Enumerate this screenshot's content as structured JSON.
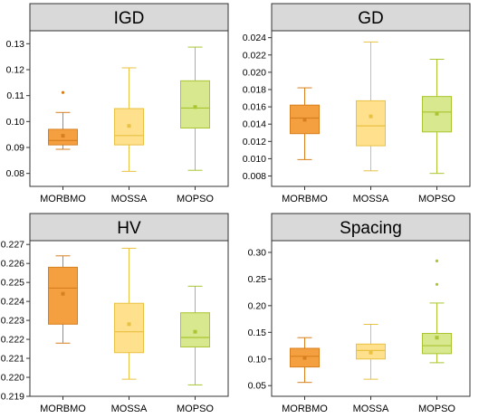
{
  "chart_data": [
    {
      "type": "box",
      "title": "IGD",
      "categories": [
        "MORBMO",
        "MOSSA",
        "MOPSO"
      ],
      "ylim": [
        0.075,
        0.135
      ],
      "ticks": [
        0.08,
        0.09,
        0.1,
        0.11,
        0.12,
        0.13
      ],
      "tick_decimals": 2,
      "series": [
        {
          "category": "MORBMO",
          "whisker_low": 0.0893,
          "q1": 0.091,
          "median": 0.0927,
          "q3": 0.097,
          "whisker_high": 0.1035,
          "mean": 0.0945,
          "outliers": [
            0.1112
          ],
          "color": "#f5a040",
          "border": "#d77f1e"
        },
        {
          "category": "MOSSA",
          "whisker_low": 0.0808,
          "q1": 0.091,
          "median": 0.0946,
          "q3": 0.105,
          "whisker_high": 0.1207,
          "mean": 0.0983,
          "outliers": [],
          "color": "#ffe08c",
          "border": "#e9c143"
        },
        {
          "category": "MOPSO",
          "whisker_low": 0.0812,
          "q1": 0.0975,
          "median": 0.1052,
          "q3": 0.1157,
          "whisker_high": 0.1287,
          "mean": 0.1056,
          "outliers": [],
          "color": "#d7e88e",
          "border": "#a9c531"
        }
      ]
    },
    {
      "type": "box",
      "title": "GD",
      "categories": [
        "MORBMO",
        "MOSSA",
        "MOPSO"
      ],
      "ylim": [
        0.0068,
        0.0248
      ],
      "ticks": [
        0.008,
        0.01,
        0.012,
        0.014,
        0.016,
        0.018,
        0.02,
        0.022,
        0.024
      ],
      "tick_decimals": 3,
      "series": [
        {
          "category": "MORBMO",
          "whisker_low": 0.0099,
          "q1": 0.0129,
          "median": 0.0147,
          "q3": 0.0162,
          "whisker_high": 0.0182,
          "mean": 0.0145,
          "outliers": [],
          "color": "#f5a040",
          "border": "#d77f1e"
        },
        {
          "category": "MOSSA",
          "whisker_low": 0.0086,
          "q1": 0.0115,
          "median": 0.0138,
          "q3": 0.0167,
          "whisker_high": 0.0235,
          "mean": 0.0149,
          "outliers": [],
          "color": "#ffe08c",
          "border": "#e9c143"
        },
        {
          "category": "MOPSO",
          "whisker_low": 0.0083,
          "q1": 0.0131,
          "median": 0.0154,
          "q3": 0.0172,
          "whisker_high": 0.0215,
          "mean": 0.0152,
          "outliers": [],
          "color": "#d7e88e",
          "border": "#a9c531"
        }
      ]
    },
    {
      "type": "box",
      "title": "HV",
      "categories": [
        "MORBMO",
        "MOSSA",
        "MOPSO"
      ],
      "ylim": [
        0.219,
        0.2272
      ],
      "ticks": [
        0.219,
        0.22,
        0.221,
        0.222,
        0.223,
        0.224,
        0.225,
        0.226,
        0.227
      ],
      "tick_decimals": 3,
      "series": [
        {
          "category": "MORBMO",
          "whisker_low": 0.2218,
          "q1": 0.2228,
          "median": 0.2247,
          "q3": 0.2258,
          "whisker_high": 0.2264,
          "mean": 0.2244,
          "outliers": [],
          "color": "#f5a040",
          "border": "#d77f1e"
        },
        {
          "category": "MOSSA",
          "whisker_low": 0.2199,
          "q1": 0.2213,
          "median": 0.2224,
          "q3": 0.2239,
          "whisker_high": 0.2268,
          "mean": 0.2228,
          "outliers": [],
          "color": "#ffe08c",
          "border": "#e9c143"
        },
        {
          "category": "MOPSO",
          "whisker_low": 0.2196,
          "q1": 0.2216,
          "median": 0.2221,
          "q3": 0.2234,
          "whisker_high": 0.2248,
          "mean": 0.2224,
          "outliers": [],
          "color": "#d7e88e",
          "border": "#a9c531"
        }
      ]
    },
    {
      "type": "box",
      "title": "Spacing",
      "categories": [
        "MORBMO",
        "MOSSA",
        "MOPSO"
      ],
      "ylim": [
        0.03,
        0.322
      ],
      "ticks": [
        0.05,
        0.1,
        0.15,
        0.2,
        0.25,
        0.3
      ],
      "tick_decimals": 2,
      "series": [
        {
          "category": "MORBMO",
          "whisker_low": 0.056,
          "q1": 0.085,
          "median": 0.105,
          "q3": 0.12,
          "whisker_high": 0.14,
          "mean": 0.102,
          "outliers": [],
          "color": "#f5a040",
          "border": "#d77f1e"
        },
        {
          "category": "MOSSA",
          "whisker_low": 0.062,
          "q1": 0.1,
          "median": 0.116,
          "q3": 0.128,
          "whisker_high": 0.165,
          "mean": 0.112,
          "outliers": [],
          "color": "#ffe08c",
          "border": "#e9c143"
        },
        {
          "category": "MOPSO",
          "whisker_low": 0.093,
          "q1": 0.11,
          "median": 0.125,
          "q3": 0.148,
          "whisker_high": 0.205,
          "mean": 0.14,
          "outliers": [
            0.24,
            0.284
          ],
          "color": "#d7e88e",
          "border": "#a9c531"
        }
      ]
    }
  ]
}
